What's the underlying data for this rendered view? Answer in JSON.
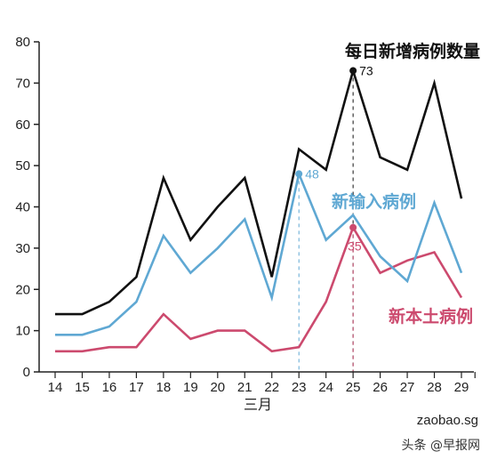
{
  "chart_data": {
    "type": "line",
    "title": "每日新增病例数量",
    "xlabel": "三月",
    "ylabel": "",
    "x": [
      14,
      15,
      16,
      17,
      18,
      19,
      20,
      21,
      22,
      23,
      24,
      25,
      26,
      27,
      28,
      29
    ],
    "ylim": [
      0,
      80
    ],
    "yticks": [
      0,
      10,
      20,
      30,
      40,
      50,
      60,
      70,
      80
    ],
    "grid": false,
    "series": [
      {
        "key": "total",
        "name": "",
        "color": "#111111",
        "values": [
          14,
          14,
          17,
          23,
          47,
          32,
          40,
          47,
          23,
          54,
          49,
          73,
          52,
          49,
          70,
          42
        ]
      },
      {
        "key": "imported",
        "name": "新输入病例",
        "color": "#5fa8d3",
        "values": [
          9,
          9,
          11,
          17,
          33,
          24,
          30,
          37,
          18,
          48,
          32,
          38,
          28,
          22,
          41,
          24
        ]
      },
      {
        "key": "local",
        "name": "新本土病例",
        "color": "#cc4a6e",
        "values": [
          5,
          5,
          6,
          6,
          14,
          8,
          10,
          10,
          5,
          6,
          17,
          35,
          24,
          27,
          29,
          18
        ]
      }
    ],
    "annotations": [
      {
        "series": "total",
        "x": 25,
        "text": "73"
      },
      {
        "series": "imported",
        "x": 23,
        "text": "48"
      },
      {
        "series": "local",
        "x": 25,
        "text": "35"
      }
    ],
    "dashed_guides_x": [
      23,
      25
    ]
  },
  "source": "zaobao.sg",
  "watermark": "头条 @早报网"
}
